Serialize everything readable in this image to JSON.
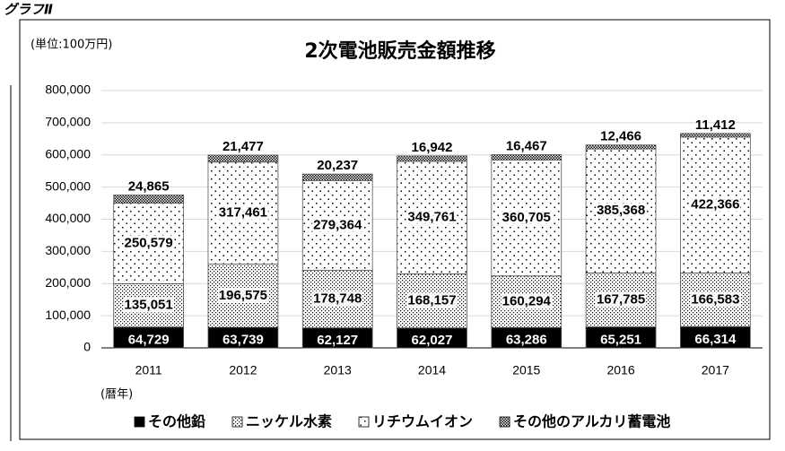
{
  "page_label": "グラフⅡ",
  "chart_data": {
    "type": "stacked-bar",
    "title": "2次電池販売金額推移",
    "unit_label": "(単位:100万円)",
    "x_label": "(暦年)",
    "categories": [
      "2011",
      "2012",
      "2013",
      "2014",
      "2015",
      "2016",
      "2017"
    ],
    "series": [
      {
        "name": "その他鉛",
        "color": "#000000",
        "pattern": "solid",
        "values": [
          64729,
          63739,
          62127,
          62027,
          63286,
          65251,
          66314
        ],
        "value_labels": [
          "64,729",
          "63,739",
          "62,127",
          "62,027",
          "63,286",
          "65,251",
          "66,314"
        ]
      },
      {
        "name": "ニッケル水素",
        "color": "#000000",
        "pattern": "dense-dots",
        "values": [
          135051,
          196575,
          178748,
          168157,
          160294,
          167785,
          166583
        ],
        "value_labels": [
          "135,051",
          "196,575",
          "178,748",
          "168,157",
          "160,294",
          "167,785",
          "166,583"
        ]
      },
      {
        "name": "リチウムイオン",
        "color": "#000000",
        "pattern": "sparse-dots",
        "values": [
          250579,
          317461,
          279364,
          349761,
          360705,
          385368,
          422366
        ],
        "value_labels": [
          "250,579",
          "317,461",
          "279,364",
          "349,761",
          "360,705",
          "385,368",
          "422,366"
        ]
      },
      {
        "name": "その他のアルカリ蓄電池",
        "color": "#000000",
        "pattern": "crosshatch",
        "values": [
          24865,
          21477,
          20237,
          16942,
          16467,
          12466,
          11412
        ],
        "value_labels": [
          "24,865",
          "21,477",
          "20,237",
          "16,942",
          "16,467",
          "12,466",
          "11,412"
        ]
      }
    ],
    "ylim": [
      0,
      800000
    ],
    "yticks": [
      0,
      {
        "value": 100000,
        "label": "100,000"
      },
      {
        "value": 200000,
        "label": "200,000"
      },
      {
        "value": 300000,
        "label": "300,000"
      },
      {
        "value": 400000,
        "label": "400,000"
      },
      {
        "value": 500000,
        "label": "500,000"
      },
      {
        "value": 600000,
        "label": "600,000"
      },
      {
        "value": 700000,
        "label": "700,000"
      },
      {
        "value": 800000,
        "label": "800,000"
      }
    ],
    "grid": true,
    "legend": "bottom"
  }
}
